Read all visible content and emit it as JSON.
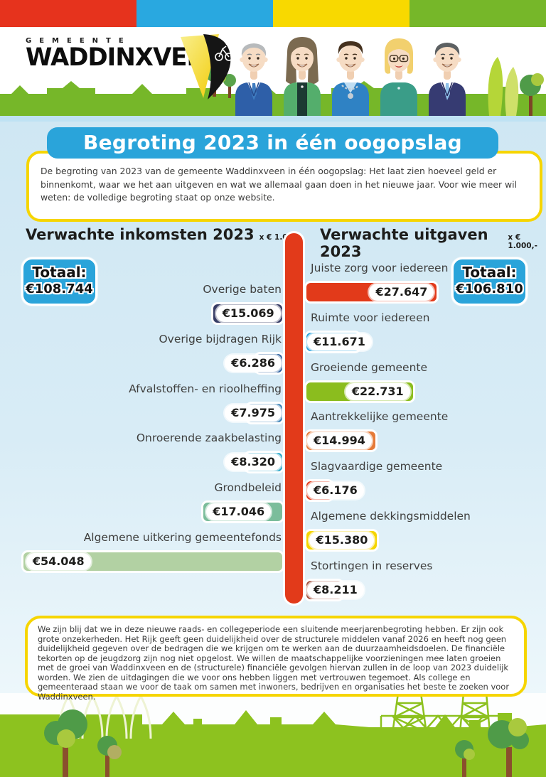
{
  "colors": {
    "stripe_red": "#e6331d",
    "stripe_blue": "#29a8e0",
    "stripe_yellow": "#f8d900",
    "stripe_green": "#76b729",
    "accent_blue": "#2aa4da",
    "accent_yellow": "#f6d500",
    "center_bar_red": "#e23a1a"
  },
  "header": {
    "logo_top": "GEMEENTE",
    "logo_main": "WADDINXVEEN",
    "avatars": [
      "man-grey-hair-blue-suit",
      "woman-brown-hair-green-jacket",
      "mayor-with-chain-blue-shirt",
      "woman-blonde-glasses-teal-top",
      "man-dark-hair-navy-suit"
    ]
  },
  "title_banner": "Begroting 2023 in één oogopslag",
  "intro": {
    "text": "De begroting van 2023 van de gemeente Waddinxveen in één oogopslag: Het laat zien hoeveel geld er binnenkomt, waar we het aan uitgeven en wat we allemaal gaan doen in het nieuwe jaar. Voor wie meer wil weten: de volledige begroting staat op onze website."
  },
  "chart_data": {
    "type": "bar",
    "orientation": "horizontal-mirrored",
    "unit_note": "x € 1.000,-",
    "income": {
      "title": "Verwachte inkomsten 2023",
      "unit": "x € 1.000,-",
      "total_label": "Totaal:",
      "total_value": "€108.744",
      "total": 108744,
      "items": [
        {
          "label": "Overige baten",
          "value": 15069,
          "display": "€15.069",
          "color": "#373d66"
        },
        {
          "label": "Overige bijdragen Rijk",
          "value": 6286,
          "display": "€6.286",
          "color": "#2c5f9e"
        },
        {
          "label": "Afvalstoffen- en rioolheffing",
          "value": 7975,
          "display": "€7.975",
          "color": "#2f7ab1"
        },
        {
          "label": "Onroerende zaakbelasting",
          "value": 8320,
          "display": "€8.320",
          "color": "#1ba1c5"
        },
        {
          "label": "Grondbeleid",
          "value": 17046,
          "display": "€17.046",
          "color": "#7bbd9b"
        },
        {
          "label": "Algemene uitkering gemeentefonds",
          "value": 54048,
          "display": "€54.048",
          "color": "#b2d1a3"
        }
      ]
    },
    "expenses": {
      "title": "Verwachte uitgaven 2023",
      "unit": "x € 1.000,-",
      "total_label": "Totaal:",
      "total_value": "€106.810",
      "total": 106810,
      "items": [
        {
          "label": "Juiste zorg voor iedereen",
          "value": 27647,
          "display": "€27.647",
          "color": "#e23a1a"
        },
        {
          "label": "Ruimte voor iedereen",
          "value": 11671,
          "display": "€11.671",
          "color": "#29a3dc"
        },
        {
          "label": "Groeiende gemeente",
          "value": 22731,
          "display": "€22.731",
          "color": "#8bbd1e"
        },
        {
          "label": "Aantrekkelijke gemeente",
          "value": 14994,
          "display": "€14.994",
          "color": "#e57a38"
        },
        {
          "label": "Slagvaardige gemeente",
          "value": 6176,
          "display": "€6.176",
          "color": "#e23a1a"
        },
        {
          "label": "Algemene dekkingsmiddelen",
          "value": 15380,
          "display": "€15.380",
          "color": "#f5d500"
        },
        {
          "label": "Stortingen in reserves",
          "value": 8211,
          "display": "€8.211",
          "color": "#a34f3b"
        }
      ]
    }
  },
  "footer": {
    "text": "We zijn blij dat we in deze nieuwe raads- en collegeperiode een sluitende meerjarenbegroting hebben. Er zijn ook grote onzekerheden. Het Rijk geeft geen duidelijkheid over de structurele middelen vanaf 2026 en heeft nog geen duidelijkheid gegeven over de bedragen die we krijgen om te werken aan de duurzaamheidsdoelen. De financiële tekorten op de jeugdzorg zijn nog niet opgelost. We willen de maatschappelijke voorzieningen mee laten groeien met de groei van Waddinxveen en de (structurele) financiële gevolgen hiervan zullen in de loop van 2023 duidelijk worden. We zien de uitdagingen die we voor ons hebben liggen met vertrouwen tegemoet. Als college en gemeenteraad staan we voor de taak om samen met inwoners, bedrijven en organisaties het beste te zoeken voor Waddinxveen."
  }
}
